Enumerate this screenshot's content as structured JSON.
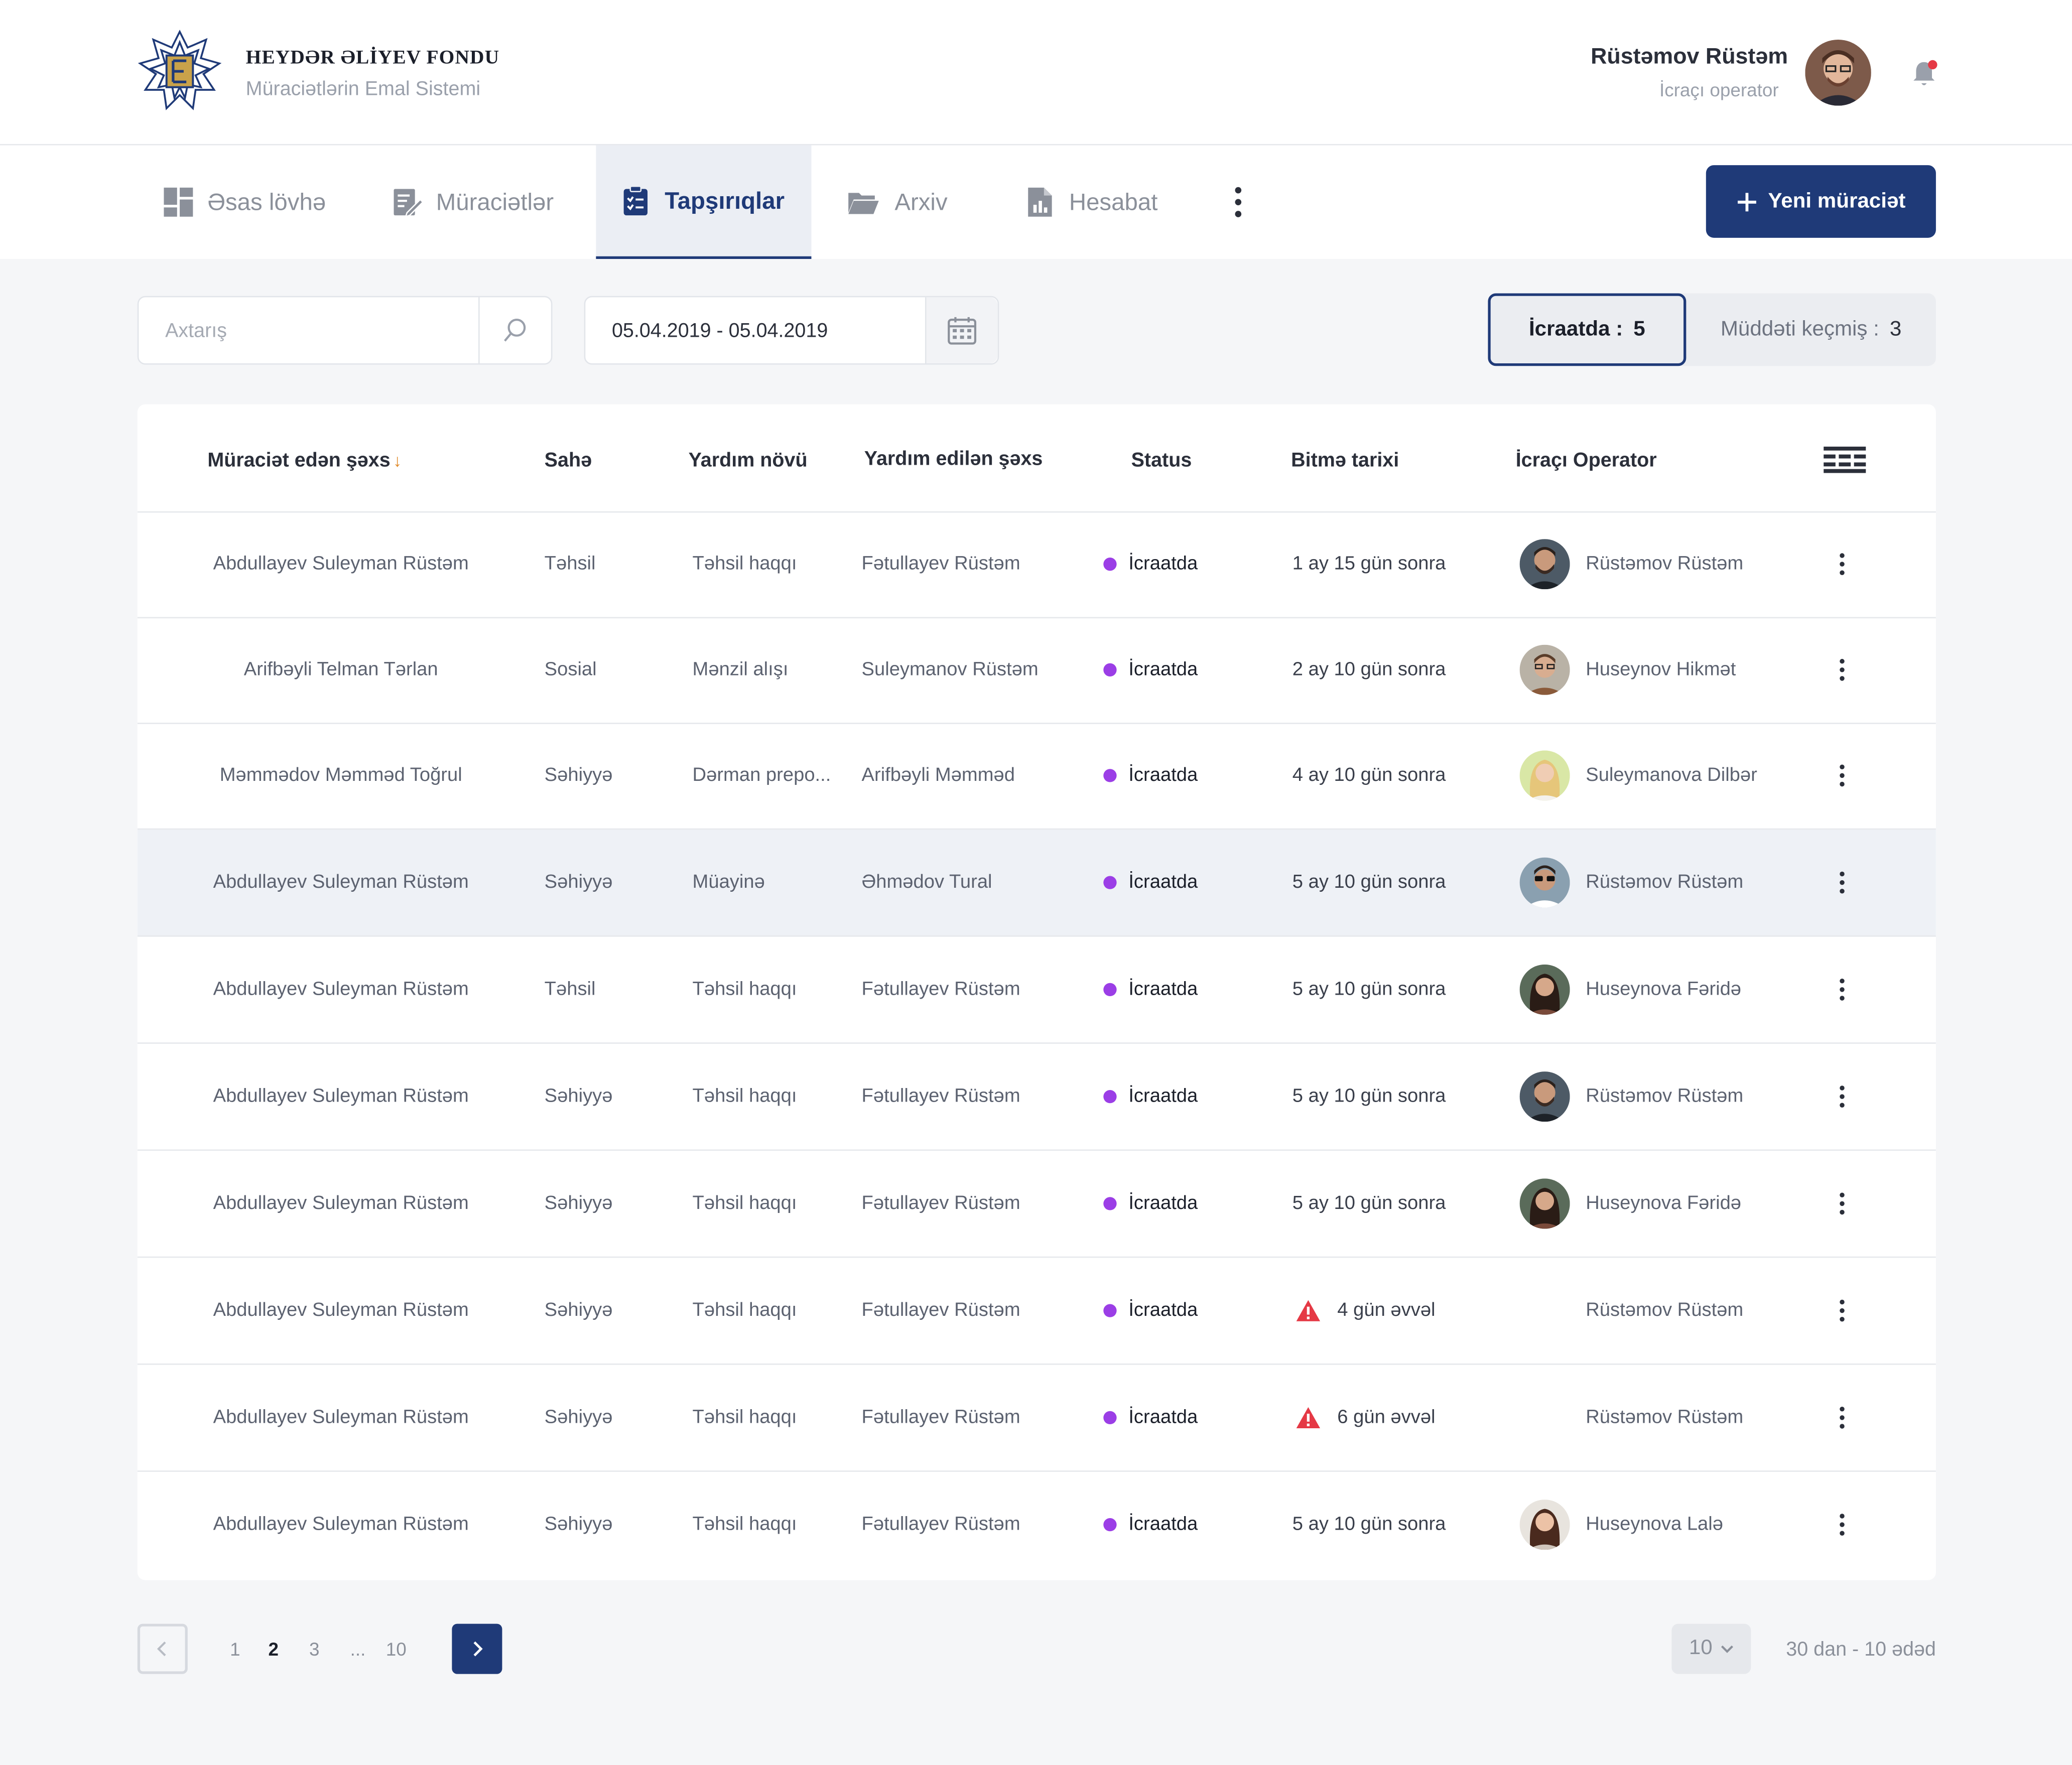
{
  "header": {
    "brand_title": "HEYDƏR ƏLİYEV FONDU",
    "brand_subtitle": "Müraciətlərin Emal Sistemi",
    "user_name": "Rüstəmov Rüstəm",
    "user_role": "İcraçı operator",
    "notification_color": "#e53945"
  },
  "nav": {
    "tabs": [
      {
        "label": "Əsas lövhə",
        "icon": "dashboard-icon"
      },
      {
        "label": "Müraciətlər",
        "icon": "edit-document-icon"
      },
      {
        "label": "Tapşırıqlar",
        "icon": "clipboard-icon",
        "active": true
      },
      {
        "label": "Arxiv",
        "icon": "folder-icon"
      },
      {
        "label": "Hesabat",
        "icon": "report-icon"
      }
    ],
    "new_button": "Yeni müraciət",
    "accent_color": "#1f3a78"
  },
  "filters": {
    "search_placeholder": "Axtarış",
    "date_range": "05.04.2019 - 05.04.2019",
    "seg_active_label": "İcraatda :",
    "seg_active_count": "5",
    "seg_other_label": "Müddəti keçmiş :",
    "seg_other_count": "3"
  },
  "table": {
    "columns": [
      "Müraciət edən şəxs",
      "Sahə",
      "Yardım növü",
      "Yardım edilən şəxs",
      "Status",
      "Bitmə tarixi",
      "İcraçı Operator"
    ],
    "sort_indicator": "↓",
    "status_color": "#9b3ee6",
    "rows": [
      {
        "applicant": "Abdullayev Suleyman Rüstəm",
        "field": "Təhsil",
        "type": "Təhsil haqqı",
        "recipient": "Fətullayev Rüstəm",
        "status": "İcraatda",
        "due": "1 ay 15 gün sonra",
        "overdue": false,
        "operator": "Rüstəmov Rüstəm",
        "avatar": "man-beard"
      },
      {
        "applicant": "Arifbəyli Telman Tərlan",
        "field": "Sosial",
        "type": "Mənzil alışı",
        "recipient": "Suleymanov Rüstəm",
        "status": "İcraatda",
        "due": "2 ay 10 gün sonra",
        "overdue": false,
        "operator": "Huseynov Hikmət",
        "avatar": "man-glasses"
      },
      {
        "applicant": "Məmmədov Məmməd Toğrul",
        "field": "Səhiyyə",
        "type": "Dərman prepo...",
        "recipient": "Arifbəyli Məmməd",
        "status": "İcraatda",
        "due": "4 ay 10 gün sonra",
        "overdue": false,
        "operator": "Suleymanova Dilbər",
        "avatar": "woman-blonde"
      },
      {
        "applicant": "Abdullayev Suleyman Rüstəm",
        "field": "Səhiyyə",
        "type": "Müayinə",
        "recipient": "Əhmədov Tural",
        "status": "İcraatda",
        "due": "5 ay 10 gün sonra",
        "overdue": false,
        "operator": "Rüstəmov Rüstəm",
        "avatar": "man-sunglasses"
      },
      {
        "applicant": "Abdullayev Suleyman Rüstəm",
        "field": "Təhsil",
        "type": "Təhsil haqqı",
        "recipient": "Fətullayev Rüstəm",
        "status": "İcraatda",
        "due": "5 ay 10 gün sonra",
        "overdue": false,
        "operator": "Huseynova Fəridə",
        "avatar": "woman-dark"
      },
      {
        "applicant": "Abdullayev Suleyman Rüstəm",
        "field": "Səhiyyə",
        "type": "Təhsil haqqı",
        "recipient": "Fətullayev Rüstəm",
        "status": "İcraatda",
        "due": "5 ay 10 gün sonra",
        "overdue": false,
        "operator": "Rüstəmov Rüstəm",
        "avatar": "man-beard"
      },
      {
        "applicant": "Abdullayev Suleyman Rüstəm",
        "field": "Səhiyyə",
        "type": "Təhsil haqqı",
        "recipient": "Fətullayev Rüstəm",
        "status": "İcraatda",
        "due": "5 ay 10 gün sonra",
        "overdue": false,
        "operator": "Huseynova Fəridə",
        "avatar": "woman-dark"
      },
      {
        "applicant": "Abdullayev Suleyman Rüstəm",
        "field": "Səhiyyə",
        "type": "Təhsil haqqı",
        "recipient": "Fətullayev Rüstəm",
        "status": "İcraatda",
        "due": "4 gün əvvəl",
        "overdue": true,
        "operator": "Rüstəmov Rüstəm",
        "avatar": ""
      },
      {
        "applicant": "Abdullayev Suleyman Rüstəm",
        "field": "Səhiyyə",
        "type": "Təhsil haqqı",
        "recipient": "Fətullayev Rüstəm",
        "status": "İcraatda",
        "due": "6 gün əvvəl",
        "overdue": true,
        "operator": "Rüstəmov Rüstəm",
        "avatar": ""
      },
      {
        "applicant": "Abdullayev Suleyman Rüstəm",
        "field": "Səhiyyə",
        "type": "Təhsil haqqı",
        "recipient": "Fətullayev Rüstəm",
        "status": "İcraatda",
        "due": "5 ay 10 gün sonra",
        "overdue": false,
        "operator": "Huseynova Lalə",
        "avatar": "woman-brunette"
      }
    ],
    "highlighted_row": 3
  },
  "pagination": {
    "pages": [
      "1",
      "2",
      "3",
      "...",
      "10"
    ],
    "current": "2",
    "per_page": "10",
    "summary": "30 dan - 10 ədəd"
  }
}
